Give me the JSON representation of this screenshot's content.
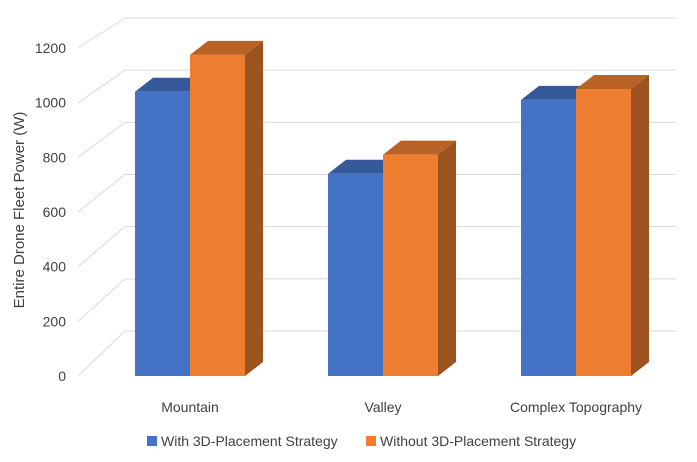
{
  "chart_data": {
    "type": "bar",
    "style": "3d-clustered-column",
    "categories": [
      "Mountain",
      "Valley",
      "Complex Topography"
    ],
    "series": [
      {
        "name": "With 3D-Placement Strategy",
        "color": "#4472C4",
        "values": [
          1040,
          740,
          1010
        ]
      },
      {
        "name": "Without 3D-Placement Strategy",
        "color": "#ED7D31",
        "values": [
          1175,
          810,
          1050
        ]
      }
    ],
    "ylabel": "Entire Drone Fleet Power (W)",
    "xlabel": "",
    "ylim": [
      0,
      1200
    ],
    "yticks": [
      0,
      200,
      400,
      600,
      800,
      1000,
      1200
    ],
    "grid": true,
    "legend_position": "bottom"
  }
}
